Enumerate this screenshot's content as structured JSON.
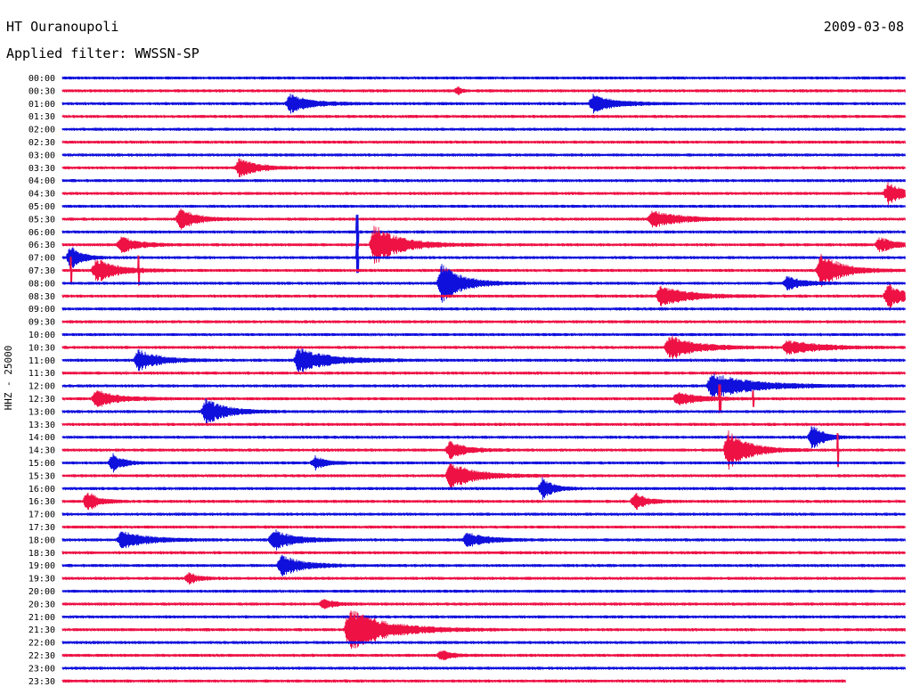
{
  "header": {
    "station": "HT Ouranoupoli",
    "date": "2009-03-08",
    "filter": "Applied filter: WWSSN-SP"
  },
  "channel_label": "HHZ - 25000",
  "colors": {
    "blue": "#1010dd",
    "red": "#ee1144"
  },
  "chart_data": {
    "type": "line",
    "title": "HT Ouranoupoli",
    "subtitle": "Applied filter: WWSSN-SP",
    "ylabel": "HHZ - 25000",
    "xlabel": "",
    "row_labels": [
      "00:00",
      "00:30",
      "01:00",
      "01:30",
      "02:00",
      "02:30",
      "03:00",
      "03:30",
      "04:00",
      "04:30",
      "05:00",
      "05:30",
      "06:00",
      "06:30",
      "07:00",
      "07:30",
      "08:00",
      "08:30",
      "09:00",
      "09:30",
      "10:00",
      "10:30",
      "11:00",
      "11:30",
      "12:00",
      "12:30",
      "13:00",
      "13:30",
      "14:00",
      "14:30",
      "15:00",
      "15:30",
      "16:00",
      "16:30",
      "17:00",
      "17:30",
      "18:00",
      "18:30",
      "19:00",
      "19:30",
      "20:00",
      "20:30",
      "21:00",
      "21:30",
      "22:00",
      "22:30",
      "23:00",
      "23:30"
    ],
    "row_minutes": 30,
    "row_colors": [
      "blue",
      "red"
    ],
    "data_end_row": 47,
    "data_end_fraction": 0.93,
    "events": [
      {
        "row": 1,
        "x": 0.47,
        "amp": 4,
        "dur": 0.006
      },
      {
        "row": 2,
        "x": 0.27,
        "amp": 10,
        "dur": 0.04
      },
      {
        "row": 2,
        "x": 0.63,
        "amp": 10,
        "dur": 0.04
      },
      {
        "row": 7,
        "x": 0.21,
        "amp": 10,
        "dur": 0.035
      },
      {
        "row": 9,
        "x": 0.98,
        "amp": 12,
        "dur": 0.03
      },
      {
        "row": 11,
        "x": 0.14,
        "amp": 12,
        "dur": 0.03
      },
      {
        "row": 11,
        "x": 0.7,
        "amp": 10,
        "dur": 0.05
      },
      {
        "row": 13,
        "x": 0.07,
        "amp": 10,
        "dur": 0.03
      },
      {
        "row": 13,
        "x": 0.37,
        "amp": 22,
        "dur": 0.05
      },
      {
        "row": 13,
        "x": 0.97,
        "amp": 8,
        "dur": 0.03
      },
      {
        "row": 14,
        "x": 0.01,
        "amp": 14,
        "dur": 0.02
      },
      {
        "row": 15,
        "x": 0.04,
        "amp": 14,
        "dur": 0.04
      },
      {
        "row": 15,
        "x": 0.9,
        "amp": 20,
        "dur": 0.04
      },
      {
        "row": 16,
        "x": 0.45,
        "amp": 22,
        "dur": 0.04
      },
      {
        "row": 16,
        "x": 0.86,
        "amp": 8,
        "dur": 0.03
      },
      {
        "row": 17,
        "x": 0.71,
        "amp": 12,
        "dur": 0.05
      },
      {
        "row": 17,
        "x": 0.98,
        "amp": 14,
        "dur": 0.03
      },
      {
        "row": 21,
        "x": 0.72,
        "amp": 14,
        "dur": 0.05
      },
      {
        "row": 21,
        "x": 0.86,
        "amp": 8,
        "dur": 0.06
      },
      {
        "row": 22,
        "x": 0.09,
        "amp": 12,
        "dur": 0.04
      },
      {
        "row": 22,
        "x": 0.28,
        "amp": 14,
        "dur": 0.06
      },
      {
        "row": 24,
        "x": 0.77,
        "amp": 14,
        "dur": 0.08
      },
      {
        "row": 25,
        "x": 0.04,
        "amp": 10,
        "dur": 0.04
      },
      {
        "row": 25,
        "x": 0.73,
        "amp": 8,
        "dur": 0.04
      },
      {
        "row": 26,
        "x": 0.17,
        "amp": 14,
        "dur": 0.04
      },
      {
        "row": 28,
        "x": 0.89,
        "amp": 16,
        "dur": 0.02
      },
      {
        "row": 29,
        "x": 0.46,
        "amp": 10,
        "dur": 0.03
      },
      {
        "row": 29,
        "x": 0.79,
        "amp": 22,
        "dur": 0.04
      },
      {
        "row": 30,
        "x": 0.06,
        "amp": 10,
        "dur": 0.02
      },
      {
        "row": 30,
        "x": 0.3,
        "amp": 8,
        "dur": 0.02
      },
      {
        "row": 31,
        "x": 0.46,
        "amp": 14,
        "dur": 0.05
      },
      {
        "row": 32,
        "x": 0.57,
        "amp": 12,
        "dur": 0.02
      },
      {
        "row": 33,
        "x": 0.03,
        "amp": 12,
        "dur": 0.02
      },
      {
        "row": 33,
        "x": 0.68,
        "amp": 10,
        "dur": 0.02
      },
      {
        "row": 36,
        "x": 0.07,
        "amp": 10,
        "dur": 0.05
      },
      {
        "row": 36,
        "x": 0.25,
        "amp": 12,
        "dur": 0.04
      },
      {
        "row": 36,
        "x": 0.48,
        "amp": 8,
        "dur": 0.04
      },
      {
        "row": 38,
        "x": 0.26,
        "amp": 12,
        "dur": 0.04
      },
      {
        "row": 39,
        "x": 0.15,
        "amp": 6,
        "dur": 0.02
      },
      {
        "row": 41,
        "x": 0.31,
        "amp": 6,
        "dur": 0.02
      },
      {
        "row": 43,
        "x": 0.34,
        "amp": 24,
        "dur": 0.07
      },
      {
        "row": 45,
        "x": 0.45,
        "amp": 6,
        "dur": 0.02
      }
    ],
    "spikes": [
      {
        "row": 15,
        "x": 0.01,
        "amp": 14
      },
      {
        "row": 15,
        "x": 0.09,
        "amp": 14
      },
      {
        "row": 25,
        "x": 0.78,
        "amp": 14
      },
      {
        "row": 25,
        "x": 0.82,
        "amp": 8
      },
      {
        "row": 29,
        "x": 0.92,
        "amp": 18
      },
      {
        "row": 12,
        "x": 0.35,
        "amp": 18
      },
      {
        "row": 14,
        "x": 0.35,
        "amp": 16
      }
    ],
    "grid": false
  }
}
